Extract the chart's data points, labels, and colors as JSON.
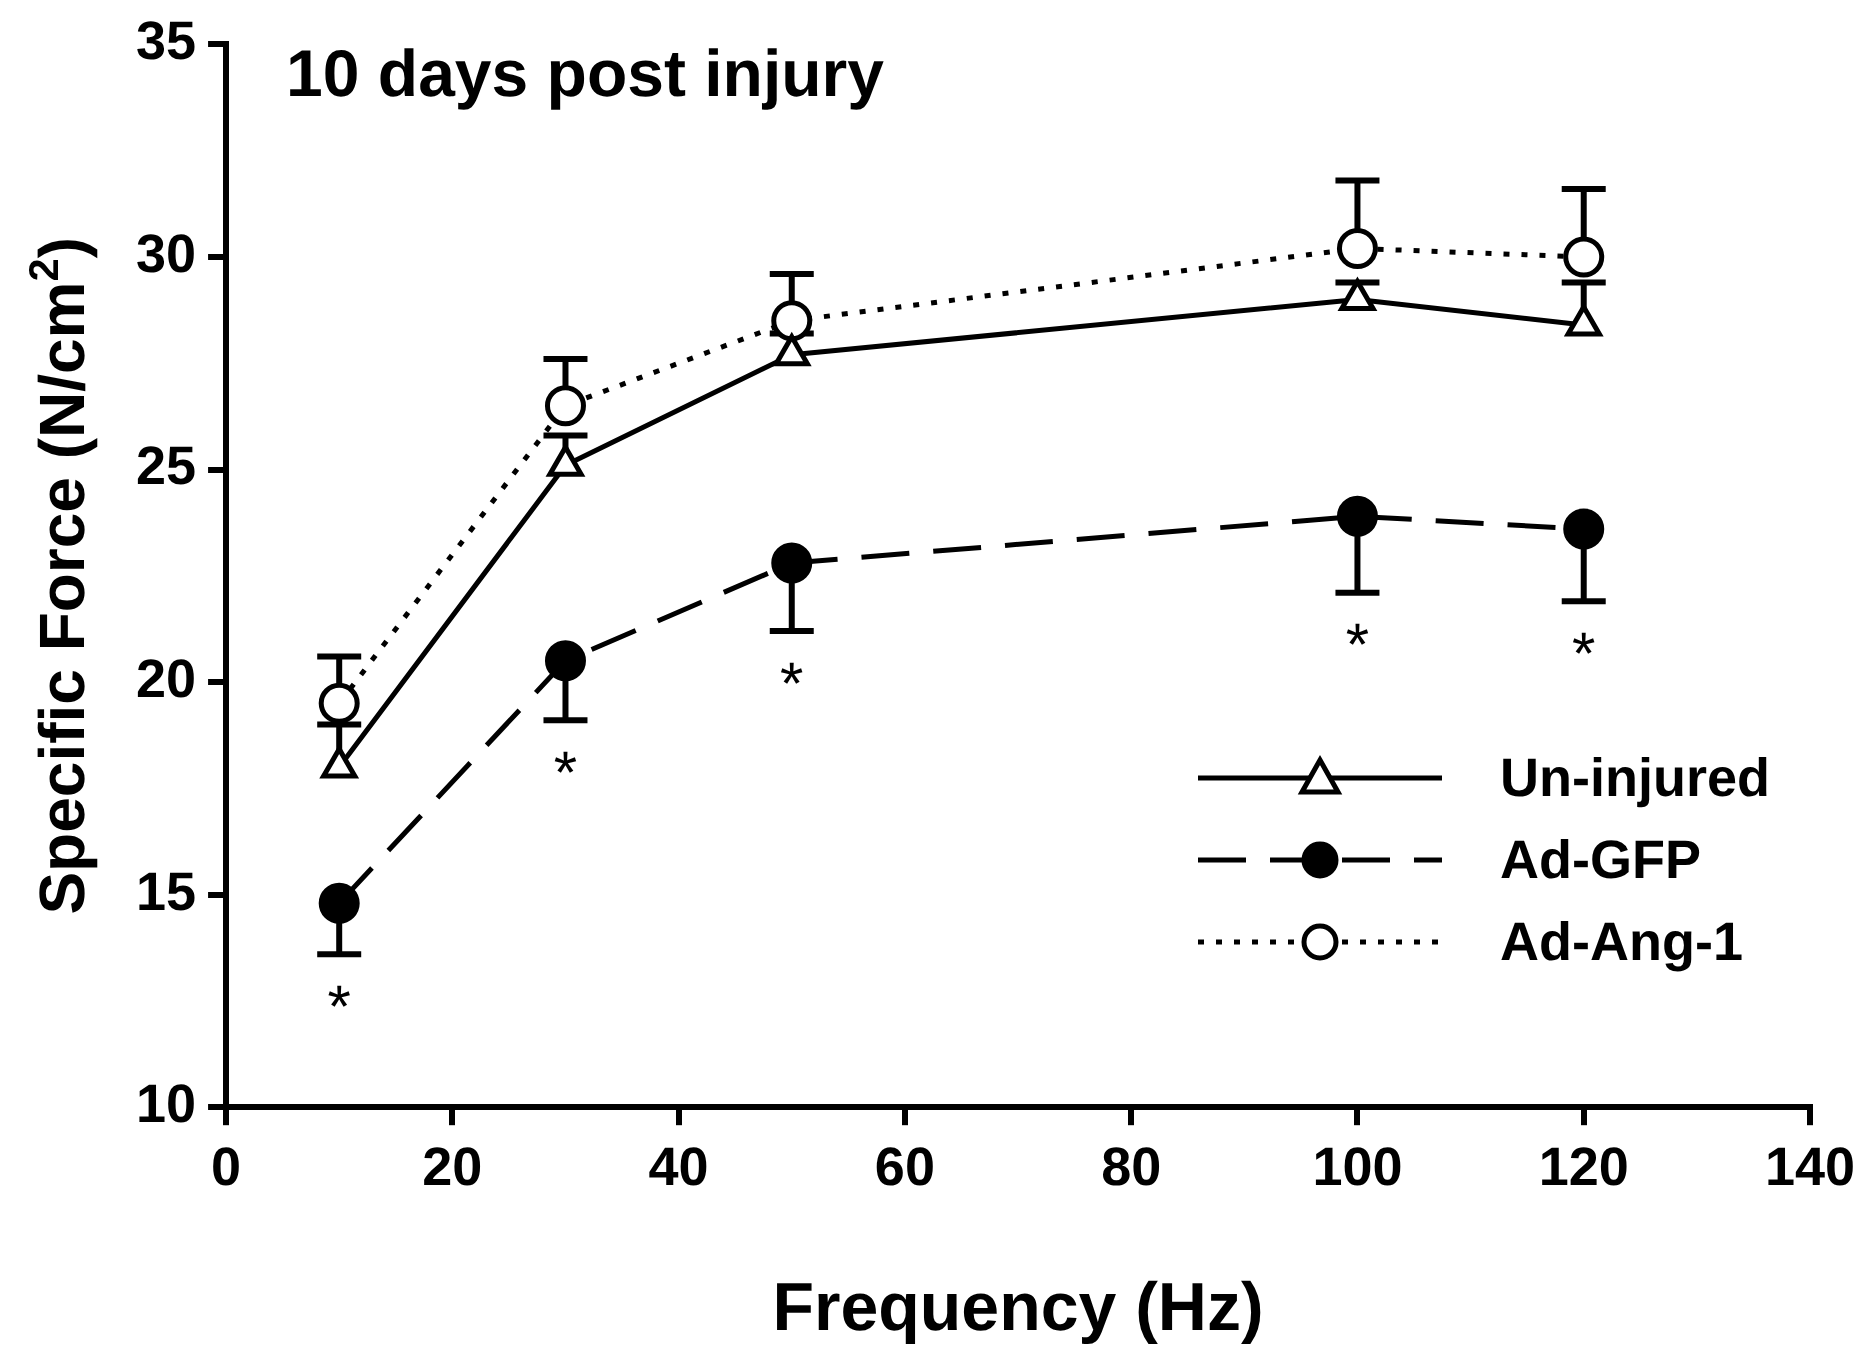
{
  "chart_data": {
    "type": "line",
    "title": "10 days post injury",
    "xlabel": "Frequency (Hz)",
    "ylabel": "Specific Force (N/cm$^{2}$)",
    "x": [
      10,
      30,
      50,
      100,
      120
    ],
    "series": [
      {
        "name": "Un-injured",
        "color": "#000000",
        "marker": "triangle",
        "line_style": "solid",
        "values": [
          18.0,
          25.1,
          27.7,
          29.0,
          28.4
        ],
        "errors": [
          [
            18.0,
            19.0
          ],
          [
            25.1,
            25.8
          ],
          [
            27.7,
            28.2
          ],
          [
            29.0,
            29.4
          ],
          [
            28.4,
            29.4
          ]
        ]
      },
      {
        "name": "Ad-GFP",
        "color": "#000000",
        "marker": "circle",
        "line_style": "dashed",
        "values": [
          14.8,
          20.5,
          22.8,
          23.9,
          23.6
        ],
        "errors": [
          [
            13.6,
            14.8
          ],
          [
            19.1,
            20.5
          ],
          [
            21.2,
            22.8
          ],
          [
            22.1,
            23.9
          ],
          [
            21.9,
            23.6
          ]
        ]
      },
      {
        "name": "Ad-Ang-1",
        "color": "#000000",
        "marker": "circle",
        "line_style": "dotted",
        "values": [
          19.5,
          26.5,
          28.5,
          30.2,
          30.0
        ],
        "errors": [
          [
            19.5,
            20.6
          ],
          [
            26.5,
            27.6
          ],
          [
            28.5,
            29.6
          ],
          [
            30.2,
            31.8
          ],
          [
            30.0,
            31.6
          ]
        ]
      }
    ],
    "annotations": [
      {
        "text": "*",
        "x": 10,
        "y": 13.6
      },
      {
        "text": "*",
        "x": 30,
        "y": 19.1
      },
      {
        "text": "*",
        "x": 50,
        "y": 21.2
      },
      {
        "text": "*",
        "x": 100,
        "y": 22.1
      },
      {
        "text": "*",
        "x": 120,
        "y": 21.9
      }
    ],
    "xlim": [
      0,
      140
    ],
    "xticks": [
      0,
      20,
      40,
      60,
      80,
      100,
      120,
      140
    ],
    "ylim": [
      10,
      35
    ],
    "yticks": [
      10,
      15,
      20,
      25,
      30,
      35
    ],
    "grid": false,
    "legend": "bottom right"
  }
}
